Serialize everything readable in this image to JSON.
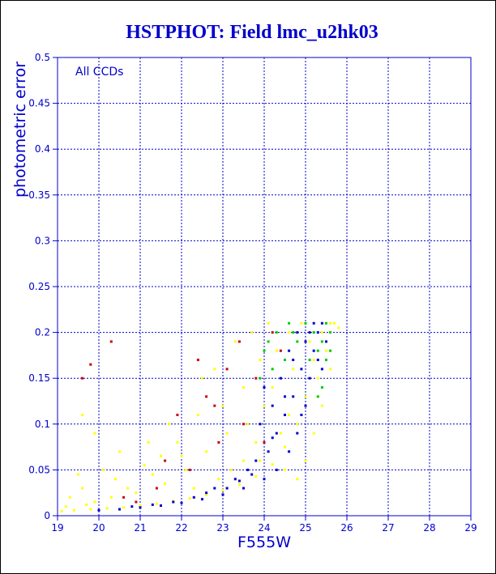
{
  "chart_data": {
    "type": "scatter",
    "title": "HSTPHOT: Field lmc_u2hk03",
    "xlabel": "F555W",
    "ylabel": "photometric error",
    "annotation": "All CCDs",
    "xlim": [
      19,
      29
    ],
    "ylim": [
      0,
      0.5
    ],
    "xticks": [
      "19",
      "20",
      "21",
      "22",
      "23",
      "24",
      "25",
      "26",
      "27",
      "28",
      "29"
    ],
    "yticks": [
      "0",
      "0.05",
      "0.1",
      "0.15",
      "0.2",
      "0.25",
      "0.3",
      "0.35",
      "0.4",
      "0.45",
      "0.5"
    ],
    "grid": true,
    "series": [
      {
        "color": "#ffff00",
        "points": [
          [
            19.1,
            0.005
          ],
          [
            19.4,
            0.006
          ],
          [
            19.8,
            0.007
          ],
          [
            20.2,
            0.008
          ],
          [
            20.6,
            0.009
          ],
          [
            21.0,
            0.011
          ],
          [
            21.4,
            0.013
          ],
          [
            21.8,
            0.016
          ],
          [
            22.2,
            0.019
          ],
          [
            22.6,
            0.023
          ],
          [
            23.0,
            0.028
          ],
          [
            23.4,
            0.034
          ],
          [
            23.8,
            0.043
          ],
          [
            24.2,
            0.056
          ],
          [
            24.5,
            0.075
          ],
          [
            24.8,
            0.1
          ],
          [
            25.0,
            0.13
          ],
          [
            25.2,
            0.17
          ],
          [
            25.4,
            0.2
          ],
          [
            25.6,
            0.21
          ],
          [
            19.3,
            0.02
          ],
          [
            19.6,
            0.03
          ],
          [
            19.5,
            0.045
          ],
          [
            19.9,
            0.015
          ],
          [
            20.1,
            0.05
          ],
          [
            20.4,
            0.04
          ],
          [
            20.7,
            0.03
          ],
          [
            21.1,
            0.055
          ],
          [
            21.5,
            0.065
          ],
          [
            21.3,
            0.045
          ],
          [
            21.9,
            0.08
          ],
          [
            22.1,
            0.05
          ],
          [
            22.4,
            0.11
          ],
          [
            22.6,
            0.07
          ],
          [
            22.8,
            0.16
          ],
          [
            23.0,
            0.12
          ],
          [
            23.1,
            0.09
          ],
          [
            23.3,
            0.19
          ],
          [
            23.5,
            0.14
          ],
          [
            23.6,
            0.1
          ],
          [
            23.7,
            0.2
          ],
          [
            23.9,
            0.17
          ],
          [
            24.0,
            0.12
          ],
          [
            24.1,
            0.21
          ],
          [
            24.3,
            0.18
          ],
          [
            24.4,
            0.09
          ],
          [
            24.6,
            0.2
          ],
          [
            24.7,
            0.16
          ],
          [
            24.9,
            0.21
          ],
          [
            25.1,
            0.19
          ],
          [
            25.3,
            0.15
          ],
          [
            25.5,
            0.18
          ],
          [
            25.7,
            0.21
          ],
          [
            25.8,
            0.205
          ],
          [
            24.2,
            0.14
          ],
          [
            23.8,
            0.08
          ],
          [
            22.9,
            0.04
          ],
          [
            23.5,
            0.06
          ],
          [
            24.5,
            0.05
          ],
          [
            25.2,
            0.09
          ],
          [
            19.2,
            0.01
          ],
          [
            19.7,
            0.012
          ],
          [
            20.3,
            0.02
          ],
          [
            20.9,
            0.025
          ],
          [
            21.6,
            0.035
          ],
          [
            22.3,
            0.03
          ],
          [
            23.2,
            0.05
          ],
          [
            23.9,
            0.06
          ],
          [
            24.6,
            0.11
          ],
          [
            25.0,
            0.06
          ],
          [
            25.4,
            0.12
          ],
          [
            22.0,
            0.065
          ],
          [
            21.7,
            0.1
          ],
          [
            21.2,
            0.08
          ],
          [
            22.5,
            0.15
          ],
          [
            24.8,
            0.04
          ],
          [
            25.6,
            0.16
          ],
          [
            20.5,
            0.07
          ],
          [
            19.9,
            0.09
          ],
          [
            19.6,
            0.11
          ]
        ]
      },
      {
        "color": "#0000cc",
        "points": [
          [
            20.0,
            0.006
          ],
          [
            20.5,
            0.007
          ],
          [
            21.0,
            0.009
          ],
          [
            21.5,
            0.011
          ],
          [
            22.0,
            0.014
          ],
          [
            22.5,
            0.018
          ],
          [
            23.0,
            0.023
          ],
          [
            23.5,
            0.03
          ],
          [
            24.0,
            0.04
          ],
          [
            24.3,
            0.05
          ],
          [
            24.6,
            0.07
          ],
          [
            24.8,
            0.09
          ],
          [
            25.0,
            0.12
          ],
          [
            25.1,
            0.15
          ],
          [
            25.2,
            0.18
          ],
          [
            25.3,
            0.2
          ],
          [
            25.4,
            0.21
          ],
          [
            25.0,
            0.19
          ],
          [
            24.9,
            0.16
          ],
          [
            24.7,
            0.13
          ],
          [
            24.5,
            0.11
          ],
          [
            24.3,
            0.09
          ],
          [
            24.1,
            0.07
          ],
          [
            23.8,
            0.06
          ],
          [
            23.6,
            0.05
          ],
          [
            24.4,
            0.15
          ],
          [
            24.6,
            0.18
          ],
          [
            24.8,
            0.2
          ],
          [
            25.2,
            0.21
          ],
          [
            25.3,
            0.17
          ],
          [
            25.5,
            0.19
          ],
          [
            24.2,
            0.12
          ],
          [
            23.9,
            0.1
          ],
          [
            24.0,
            0.14
          ],
          [
            23.3,
            0.04
          ],
          [
            22.8,
            0.03
          ],
          [
            25.4,
            0.16
          ],
          [
            25.1,
            0.2
          ],
          [
            24.7,
            0.17
          ],
          [
            24.5,
            0.13
          ],
          [
            20.8,
            0.01
          ],
          [
            21.3,
            0.012
          ],
          [
            21.8,
            0.015
          ],
          [
            22.3,
            0.02
          ],
          [
            22.6,
            0.025
          ],
          [
            23.1,
            0.03
          ],
          [
            23.4,
            0.038
          ],
          [
            23.7,
            0.045
          ],
          [
            24.2,
            0.085
          ],
          [
            24.9,
            0.11
          ]
        ]
      },
      {
        "color": "#00cc00",
        "points": [
          [
            24.0,
            0.18
          ],
          [
            24.3,
            0.2
          ],
          [
            24.6,
            0.21
          ],
          [
            24.8,
            0.19
          ],
          [
            25.0,
            0.21
          ],
          [
            25.2,
            0.2
          ],
          [
            25.4,
            0.19
          ],
          [
            25.5,
            0.21
          ],
          [
            25.6,
            0.2
          ],
          [
            25.3,
            0.18
          ],
          [
            25.5,
            0.17
          ],
          [
            25.4,
            0.14
          ],
          [
            24.5,
            0.17
          ],
          [
            24.2,
            0.16
          ],
          [
            23.9,
            0.15
          ],
          [
            24.1,
            0.19
          ],
          [
            25.1,
            0.17
          ],
          [
            25.3,
            0.13
          ],
          [
            24.7,
            0.2
          ],
          [
            25.6,
            0.18
          ]
        ]
      },
      {
        "color": "#cc0000",
        "points": [
          [
            20.3,
            0.19
          ],
          [
            19.8,
            0.165
          ],
          [
            19.6,
            0.15
          ],
          [
            22.4,
            0.17
          ],
          [
            23.1,
            0.16
          ],
          [
            22.6,
            0.13
          ],
          [
            21.9,
            0.11
          ],
          [
            23.4,
            0.19
          ],
          [
            23.8,
            0.15
          ],
          [
            24.2,
            0.2
          ],
          [
            22.9,
            0.08
          ],
          [
            22.2,
            0.05
          ],
          [
            21.4,
            0.03
          ],
          [
            20.6,
            0.02
          ],
          [
            23.5,
            0.1
          ],
          [
            24.0,
            0.08
          ],
          [
            24.4,
            0.18
          ],
          [
            20.9,
            0.015
          ],
          [
            21.6,
            0.06
          ],
          [
            22.8,
            0.12
          ]
        ]
      }
    ]
  }
}
